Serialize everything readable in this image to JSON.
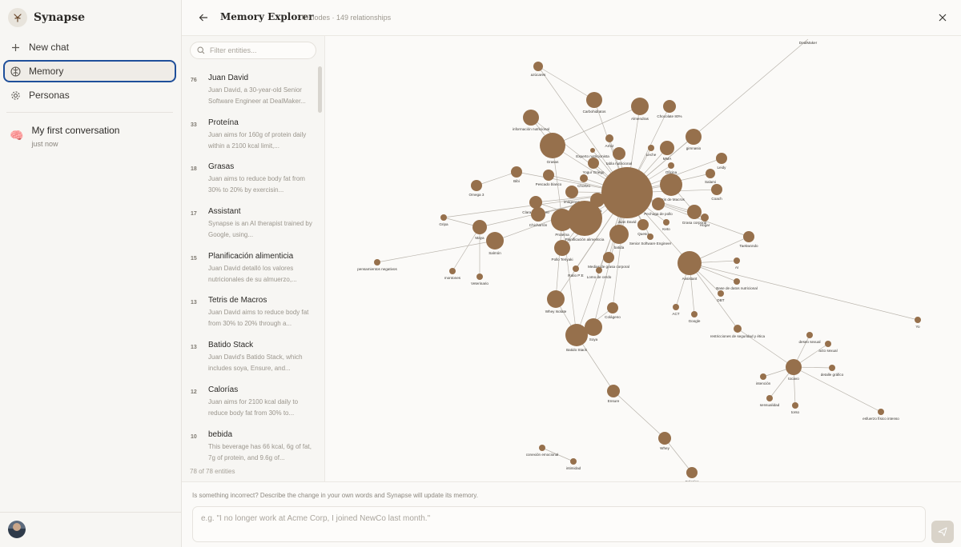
{
  "app": {
    "name": "Synapse"
  },
  "sidebar": {
    "new_chat": "New chat",
    "memory": "Memory",
    "personas": "Personas",
    "conversation": {
      "emoji": "🧠",
      "title": "My first conversation",
      "time": "just now"
    }
  },
  "header": {
    "title": "Memory Explorer",
    "stats": "78 nodes · 149 relationships"
  },
  "filter": {
    "placeholder": "Filter entities..."
  },
  "entities": [
    {
      "count": "76",
      "name": "Juan David",
      "desc": "Juan David, a 30-year-old Senior Software Engineer at DealMaker..."
    },
    {
      "count": "33",
      "name": "Proteína",
      "desc": "Juan aims for 160g of protein daily within a 2100 kcal limit,..."
    },
    {
      "count": "18",
      "name": "Grasas",
      "desc": "Juan aims to reduce body fat from 30% to 20% by exercisin..."
    },
    {
      "count": "17",
      "name": "Assistant",
      "desc": "Synapse is an AI therapist trained by Google, using..."
    },
    {
      "count": "15",
      "name": "Planificación alimenticia",
      "desc": "Juan David detalló los valores nutricionales de su almuerzo,..."
    },
    {
      "count": "13",
      "name": "Tetris de Macros",
      "desc": "Juan David aims to reduce body fat from 30% to 20% through a..."
    },
    {
      "count": "13",
      "name": "Batido Stack",
      "desc": "Juan David's Batido Stack, which includes soya, Ensure, and..."
    },
    {
      "count": "12",
      "name": "Calorías",
      "desc": "Juan aims for 2100 kcal daily to reduce body fat from 30% to..."
    },
    {
      "count": "10",
      "name": "bebida",
      "desc": "This beverage has 66 kcal, 6g of fat, 7g of protein, and 9.6g of..."
    }
  ],
  "list_footer": "78 of 78 entities",
  "correction": {
    "hint": "Is something incorrect? Describe the change in your own words and Synapse will update its memory.",
    "placeholder": "e.g. \"I no longer work at Acme Corp, I joined NewCo last month.\""
  },
  "graph_labels": [
    "DealMaker",
    "azúcares",
    "Carbohidratos",
    "Chocolate 80%",
    "Almendras",
    "información nutricional",
    "Grasas",
    "Experto nutricionista",
    "Arroz",
    "Leche",
    "gimnasio",
    "MMA",
    "tabla nutricional",
    "Yogur Griego",
    "Oficina",
    "Leidy",
    "Bibi",
    "Omega 3",
    "Pescado blanco",
    "Chorizo",
    "Salami",
    "Tetris de Macros",
    "Coach",
    "imágenes",
    "Claras de huevo",
    "Cena",
    "Pechuga de pollo",
    "Chicharrón",
    "Juan David",
    "Queso",
    "Grasa corporal",
    "Hogar",
    "Gripa",
    "Keto",
    "Planificación alimenticia",
    "Proteína",
    "Maya",
    "Senior Software Engineer",
    "Taekwondo",
    "batida",
    "Salmón",
    "Pollo Teriyaki",
    "Medias de grasa corporal",
    "Lomo de cerdo",
    "pensamientos negativos",
    "AI",
    "Assistant",
    "Ratio P:E",
    "Base de datos nutricional",
    "Veterinario",
    "DBT",
    "ACT",
    "Whey Isolate",
    "Google",
    "Colágeno",
    "Yo",
    "restricciones de seguridad y ética",
    "deseo sexual",
    "acto sexual",
    "Batido Stack",
    "Soya",
    "tocavo",
    "detalle gráfico",
    "intención",
    "sensualidad",
    "torso",
    "Ensure",
    "esfuerzo físico intenso",
    "conexión emocional",
    "Whey",
    "intimidad",
    "Calorías",
    "montones"
  ],
  "colors": {
    "node": "#96704c",
    "edge": "#b9b4ac",
    "accent": "#1f4f9a"
  }
}
